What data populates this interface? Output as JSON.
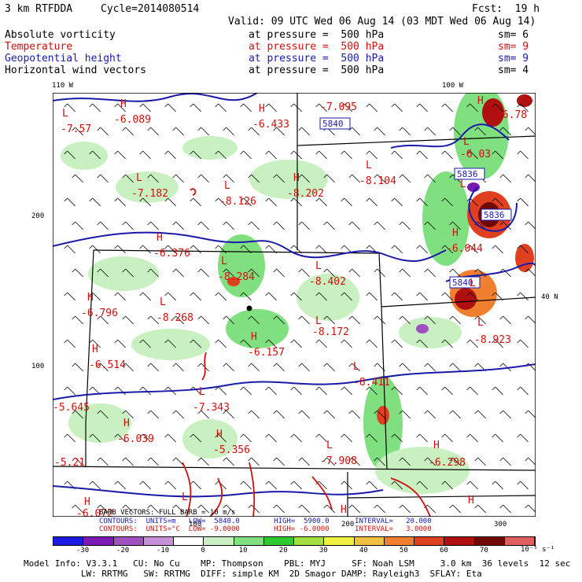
{
  "header": {
    "model": "3 km RTFDDA",
    "cycle": "Cycle=2014080514",
    "fcst": "Fcst:  19 h",
    "valid": "Valid: 09 UTC Wed 06 Aug 14 (03 MDT Wed 06 Aug 14)"
  },
  "fields": [
    {
      "name": "Absolute vorticity",
      "level": "at pressure =  500 hPa",
      "sm": "sm= 6",
      "color": "#000000"
    },
    {
      "name": "Temperature",
      "level": "at pressure =  500 hPa",
      "sm": "sm= 9",
      "color": "#d01010"
    },
    {
      "name": "Geopotential height",
      "level": "at pressure =  500 hPa",
      "sm": "sm= 9",
      "color": "#1a1aa8"
    },
    {
      "name": "Horizontal wind vectors",
      "level": "at pressure =  500 hPa",
      "sm": "sm= 4",
      "color": "#000000"
    }
  ],
  "axes": {
    "top_left": "110 W",
    "top_right": "100 W",
    "right_lat": "40 N",
    "left_200": "200",
    "left_100": "100",
    "bottom_100": "100",
    "bottom_200": "200",
    "bottom_300": "300"
  },
  "labels": {
    "H": "H",
    "L": "L"
  },
  "temp_values": [
    "-7.57",
    "-6.089",
    "-6.433",
    "-7.095",
    "-7.182",
    "-8.126",
    "-8.202",
    "-8.104",
    "-6.376",
    "-8.284",
    "-8.402",
    "-6.796",
    "-8.268",
    "-8.172",
    "-6.157",
    "-6.514",
    "-7.343",
    "-6.039",
    "-5.356",
    "-7.908",
    "-6.298",
    "-6.072",
    "-8.411",
    "-6.044",
    "-8.923",
    "-6.03",
    "-6.78",
    "-5.645",
    "-5.21"
  ],
  "height_labels": [
    "5840",
    "5836",
    "5836",
    "5840"
  ],
  "contour_lines": {
    "line1": "CONTOURS:  UNITS=m   LOW=  5840.0        HIGH=  5900.0      INTERVAL=   20.000",
    "line2": "CONTOURS:  UNITS=°C  LOW= -9.0000        HIGH= -6.0000      INTERVAL=   3.0000",
    "vector_note": "BARB VECTORS: FULL BARB = 10 m/s"
  },
  "colorbar": {
    "ticks": [
      "-30",
      "-20",
      "-10",
      "0",
      "10",
      "20",
      "30",
      "40",
      "50",
      "60",
      "70"
    ],
    "units": "10⁻⁵ s⁻¹",
    "colors": [
      "#1a1ae0",
      "#7a1ab0",
      "#a050c0",
      "#c890d8",
      "#ffffff",
      "#c8f0c0",
      "#80e080",
      "#30c830",
      "#a0e040",
      "#f0f040",
      "#f0c040",
      "#f08030",
      "#e04020",
      "#b01010",
      "#700808",
      "#e06060"
    ]
  },
  "footer": {
    "line1": "Model Info: V3.3.1   CU: No Cu    MP: Thompson    PBL: MYJ     SF: Noah LSM     3.0 km  36 levels  12 sec",
    "line2": "           LW: RRTMG   SW: RRTMG  DIFF: simple KM  2D Smagor DAMP: Rayleigh3  SFLAY: Eta"
  }
}
